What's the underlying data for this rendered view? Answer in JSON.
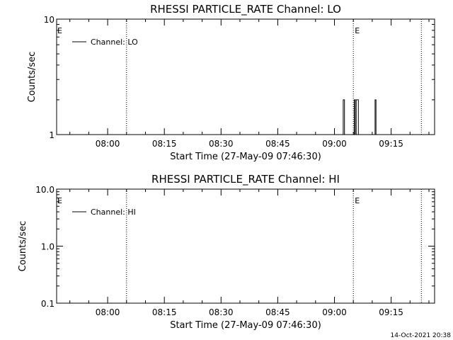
{
  "footer_timestamp": "14-Oct-2021 20:38",
  "chart_data": [
    {
      "type": "line",
      "title": "RHESSI PARTICLE_RATE Channel: LO",
      "xlabel": "Start Time (27-May-09 07:46:30)",
      "ylabel": "Counts/sec",
      "yscale": "log",
      "ylim": [
        1,
        10
      ],
      "y_ticks": [
        1,
        10
      ],
      "y_tick_labels": [
        "1",
        "10"
      ],
      "x_ticks": [
        "08:00",
        "08:15",
        "08:30",
        "08:45",
        "09:00",
        "09:15"
      ],
      "xlim": [
        "07:46:30",
        "09:26:30"
      ],
      "legend": {
        "label": "Channel: LO",
        "placement": "top-left"
      },
      "grid": false,
      "event_markers": [
        {
          "time": "08:05",
          "label": "E"
        },
        {
          "time": "09:05",
          "label": "E"
        },
        {
          "time": "09:23"
        }
      ],
      "series": [
        {
          "x": [
            "09:02:00",
            "09:02:20",
            "09:02:40",
            "09:03:00",
            "09:05:00",
            "09:05:15",
            "09:05:30",
            "09:05:45",
            "09:06:00",
            "09:06:20",
            "09:10:30",
            "09:10:45",
            "09:11:00"
          ],
          "values": [
            1,
            2,
            1,
            1,
            1,
            2,
            1,
            2,
            2,
            1,
            1,
            2,
            1
          ]
        }
      ]
    },
    {
      "type": "line",
      "title": "RHESSI PARTICLE_RATE Channel: HI",
      "xlabel": "Start Time (27-May-09 07:46:30)",
      "ylabel": "Counts/sec",
      "yscale": "log",
      "ylim": [
        0.1,
        10
      ],
      "y_ticks": [
        0.1,
        1,
        10
      ],
      "y_tick_labels": [
        "0.1",
        "1.0",
        "10.0"
      ],
      "x_ticks": [
        "08:00",
        "08:15",
        "08:30",
        "08:45",
        "09:00",
        "09:15"
      ],
      "xlim": [
        "07:46:30",
        "09:26:30"
      ],
      "legend": {
        "label": "Channel: HI",
        "placement": "top-left"
      },
      "grid": false,
      "event_markers": [
        {
          "time": "08:05",
          "label": "E"
        },
        {
          "time": "09:05",
          "label": "E"
        },
        {
          "time": "09:23"
        }
      ],
      "series": []
    }
  ]
}
